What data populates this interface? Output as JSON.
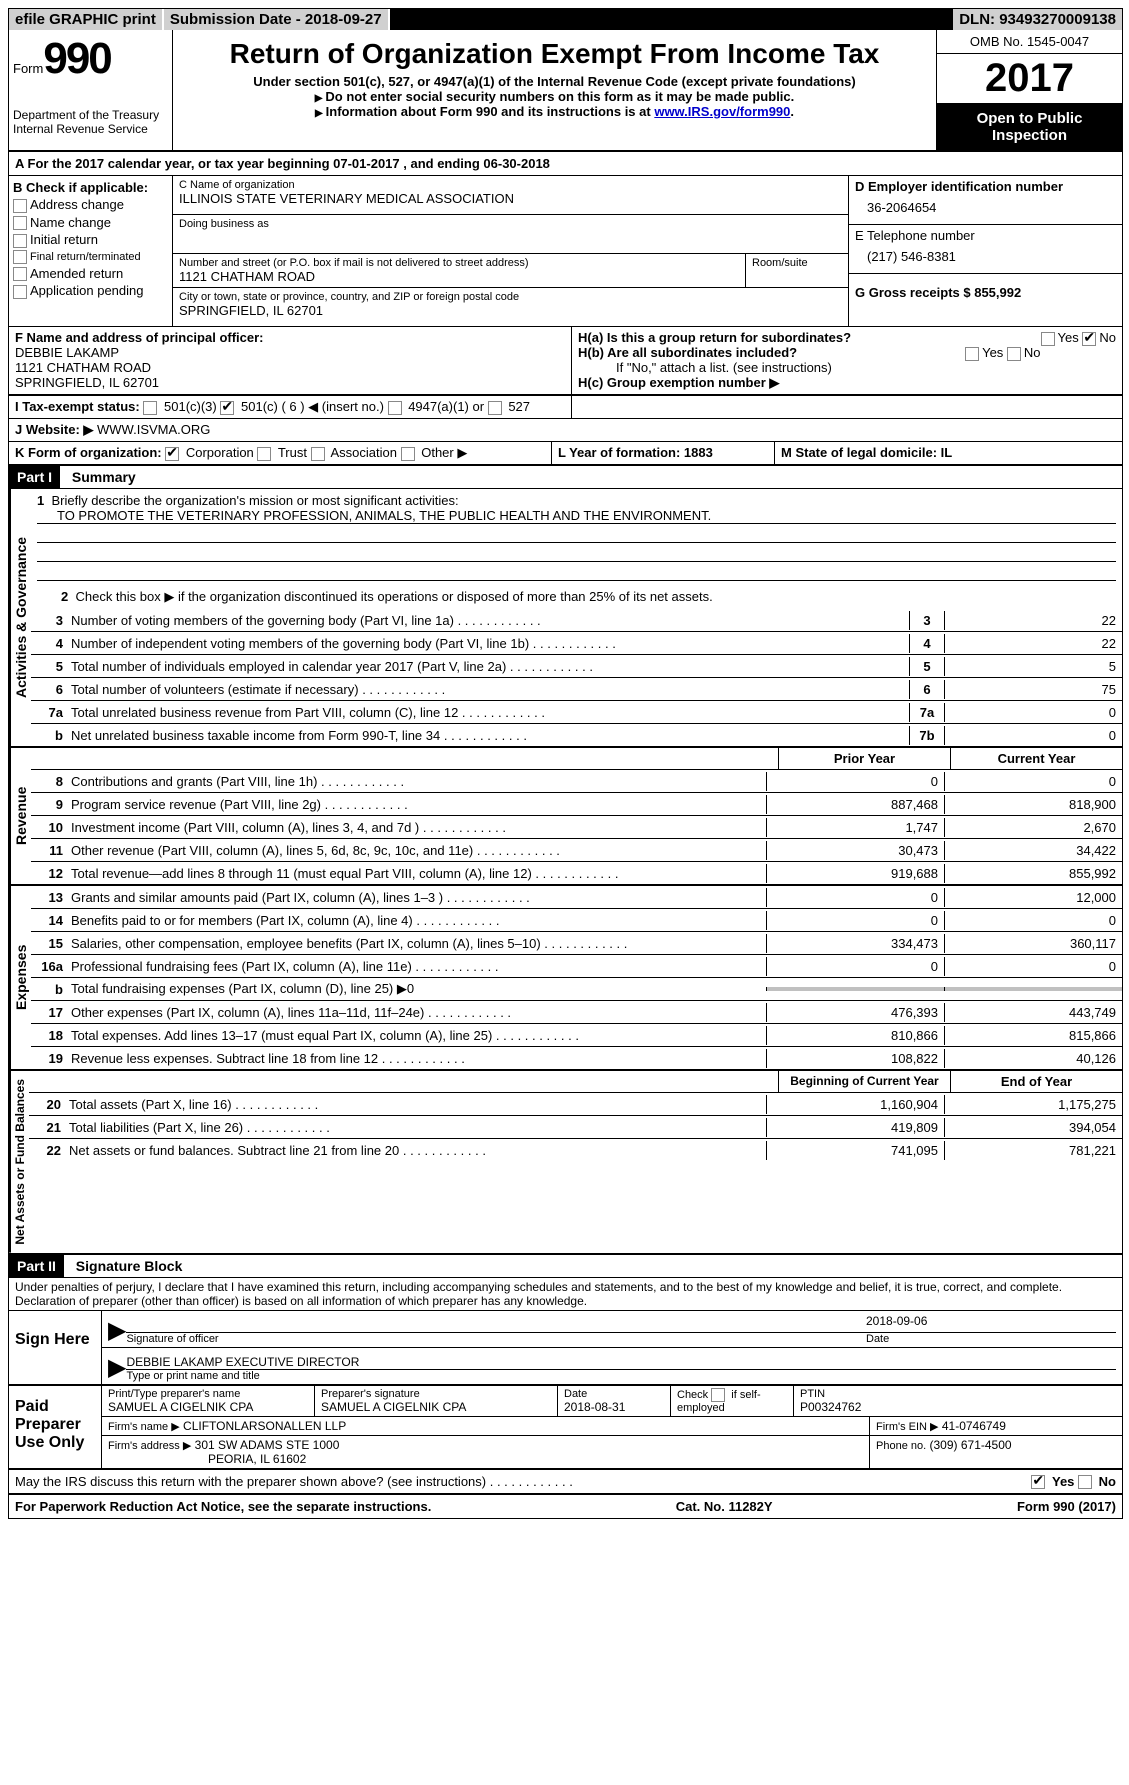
{
  "topbar": {
    "efile": "efile GRAPHIC print",
    "submission": "Submission Date - 2018-09-27",
    "dln": "DLN: 93493270009138"
  },
  "header": {
    "form_label": "Form",
    "form_num": "990",
    "dept": "Department of the Treasury",
    "irs": "Internal Revenue Service",
    "title": "Return of Organization Exempt From Income Tax",
    "subtitle": "Under section 501(c), 527, or 4947(a)(1) of the Internal Revenue Code (except private foundations)",
    "note1": "Do not enter social security numbers on this form as it may be made public.",
    "note2_prefix": "Information about Form 990 and its instructions is at ",
    "note2_link": "www.IRS.gov/form990",
    "omb": "OMB No. 1545-0047",
    "year": "2017",
    "inspection": "Open to Public Inspection"
  },
  "section_a": "A  For the 2017 calendar year, or tax year beginning 07-01-2017   , and ending 06-30-2018",
  "section_b": {
    "header": "B Check if applicable:",
    "items": [
      "Address change",
      "Name change",
      "Initial return",
      "Final return/terminated",
      "Amended return",
      "Application pending"
    ]
  },
  "section_c": {
    "name_label": "C Name of organization",
    "name": "ILLINOIS STATE VETERINARY MEDICAL ASSOCIATION",
    "dba_label": "Doing business as",
    "street_label": "Number and street (or P.O. box if mail is not delivered to street address)",
    "room_label": "Room/suite",
    "street": "1121 CHATHAM ROAD",
    "city_label": "City or town, state or province, country, and ZIP or foreign postal code",
    "city": "SPRINGFIELD, IL  62701"
  },
  "section_d": {
    "ein_label": "D Employer identification number",
    "ein": "36-2064654",
    "phone_label": "E Telephone number",
    "phone": "(217) 546-8381",
    "gross_label": "G Gross receipts $ 855,992"
  },
  "section_f": {
    "label": "F  Name and address of principal officer:",
    "name": "DEBBIE LAKAMP",
    "addr1": "1121 CHATHAM ROAD",
    "addr2": "SPRINGFIELD, IL  62701"
  },
  "section_h": {
    "ha": "H(a)  Is this a group return for subordinates?",
    "hb": "H(b)  Are all subordinates included?",
    "hb_note": "If \"No,\" attach a list. (see instructions)",
    "hc": "H(c)  Group exemption number ▶"
  },
  "section_i": {
    "label": "I  Tax-exempt status:",
    "opts": [
      "501(c)(3)",
      "501(c) ( 6 ) ◀ (insert no.)",
      "4947(a)(1) or",
      "527"
    ]
  },
  "section_j": {
    "label": "J  Website: ▶",
    "value": "WWW.ISVMA.ORG"
  },
  "section_k": {
    "label": "K Form of organization:",
    "opts": [
      "Corporation",
      "Trust",
      "Association",
      "Other ▶"
    ]
  },
  "section_l": "L Year of formation: 1883",
  "section_m": "M State of legal domicile: IL",
  "part1": {
    "header": "Part I",
    "title": "Summary",
    "line1_label": "Briefly describe the organization's mission or most significant activities:",
    "line1_text": "TO PROMOTE THE VETERINARY PROFESSION, ANIMALS, THE PUBLIC HEALTH AND THE ENVIRONMENT.",
    "line2": "Check this box ▶      if the organization discontinued its operations or disposed of more than 25% of its net assets.",
    "governance_label": "Activities & Governance",
    "revenue_label": "Revenue",
    "expenses_label": "Expenses",
    "netassets_label": "Net Assets or Fund Balances",
    "gov_rows": [
      {
        "num": "3",
        "text": "Number of voting members of the governing body (Part VI, line 1a)",
        "box": "3",
        "val": "22"
      },
      {
        "num": "4",
        "text": "Number of independent voting members of the governing body (Part VI, line 1b)",
        "box": "4",
        "val": "22"
      },
      {
        "num": "5",
        "text": "Total number of individuals employed in calendar year 2017 (Part V, line 2a)",
        "box": "5",
        "val": "5"
      },
      {
        "num": "6",
        "text": "Total number of volunteers (estimate if necessary)",
        "box": "6",
        "val": "75"
      },
      {
        "num": "7a",
        "text": "Total unrelated business revenue from Part VIII, column (C), line 12",
        "box": "7a",
        "val": "0"
      },
      {
        "num": "b",
        "text": "Net unrelated business taxable income from Form 990-T, line 34",
        "box": "7b",
        "val": "0"
      }
    ],
    "col_headers": {
      "prior": "Prior Year",
      "current": "Current Year",
      "begin": "Beginning of Current Year",
      "end": "End of Year"
    },
    "rev_rows": [
      {
        "num": "8",
        "text": "Contributions and grants (Part VIII, line 1h)",
        "prior": "0",
        "current": "0"
      },
      {
        "num": "9",
        "text": "Program service revenue (Part VIII, line 2g)",
        "prior": "887,468",
        "current": "818,900"
      },
      {
        "num": "10",
        "text": "Investment income (Part VIII, column (A), lines 3, 4, and 7d )",
        "prior": "1,747",
        "current": "2,670"
      },
      {
        "num": "11",
        "text": "Other revenue (Part VIII, column (A), lines 5, 6d, 8c, 9c, 10c, and 11e)",
        "prior": "30,473",
        "current": "34,422"
      },
      {
        "num": "12",
        "text": "Total revenue—add lines 8 through 11 (must equal Part VIII, column (A), line 12)",
        "prior": "919,688",
        "current": "855,992"
      }
    ],
    "exp_rows": [
      {
        "num": "13",
        "text": "Grants and similar amounts paid (Part IX, column (A), lines 1–3 )",
        "prior": "0",
        "current": "12,000"
      },
      {
        "num": "14",
        "text": "Benefits paid to or for members (Part IX, column (A), line 4)",
        "prior": "0",
        "current": "0"
      },
      {
        "num": "15",
        "text": "Salaries, other compensation, employee benefits (Part IX, column (A), lines 5–10)",
        "prior": "334,473",
        "current": "360,117"
      },
      {
        "num": "16a",
        "text": "Professional fundraising fees (Part IX, column (A), line 11e)",
        "prior": "0",
        "current": "0"
      },
      {
        "num": "b",
        "text": "Total fundraising expenses (Part IX, column (D), line 25) ▶0",
        "prior": "",
        "current": "",
        "shaded": true
      },
      {
        "num": "17",
        "text": "Other expenses (Part IX, column (A), lines 11a–11d, 11f–24e)",
        "prior": "476,393",
        "current": "443,749"
      },
      {
        "num": "18",
        "text": "Total expenses. Add lines 13–17 (must equal Part IX, column (A), line 25)",
        "prior": "810,866",
        "current": "815,866"
      },
      {
        "num": "19",
        "text": "Revenue less expenses. Subtract line 18 from line 12",
        "prior": "108,822",
        "current": "40,126"
      }
    ],
    "net_rows": [
      {
        "num": "20",
        "text": "Total assets (Part X, line 16)",
        "prior": "1,160,904",
        "current": "1,175,275"
      },
      {
        "num": "21",
        "text": "Total liabilities (Part X, line 26)",
        "prior": "419,809",
        "current": "394,054"
      },
      {
        "num": "22",
        "text": "Net assets or fund balances. Subtract line 21 from line 20",
        "prior": "741,095",
        "current": "781,221"
      }
    ]
  },
  "part2": {
    "header": "Part II",
    "title": "Signature Block",
    "perjury": "Under penalties of perjury, I declare that I have examined this return, including accompanying schedules and statements, and to the best of my knowledge and belief, it is true, correct, and complete. Declaration of preparer (other than officer) is based on all information of which preparer has any knowledge.",
    "sign_here": "Sign Here",
    "sig_date": "2018-09-06",
    "sig_officer_label": "Signature of officer",
    "date_label": "Date",
    "officer_name": "DEBBIE LAKAMP EXECUTIVE DIRECTOR",
    "officer_name_label": "Type or print name and title",
    "paid": "Paid Preparer Use Only",
    "prep_name_label": "Print/Type preparer's name",
    "prep_name": "SAMUEL A CIGELNIK CPA",
    "prep_sig_label": "Preparer's signature",
    "prep_sig": "SAMUEL A CIGELNIK CPA",
    "prep_date_label": "Date",
    "prep_date": "2018-08-31",
    "check_self": "Check       if self-employed",
    "ptin_label": "PTIN",
    "ptin": "P00324762",
    "firm_name_label": "Firm's name    ▶",
    "firm_name": "CLIFTONLARSONALLEN LLP",
    "firm_ein_label": "Firm's EIN ▶",
    "firm_ein": "41-0746749",
    "firm_addr_label": "Firm's address ▶",
    "firm_addr": "301 SW ADAMS STE 1000",
    "firm_city": "PEORIA, IL  61602",
    "firm_phone_label": "Phone no.",
    "firm_phone": "(309) 671-4500",
    "discuss": "May the IRS discuss this return with the preparer shown above? (see instructions)"
  },
  "footer": {
    "paperwork": "For Paperwork Reduction Act Notice, see the separate instructions.",
    "cat": "Cat. No. 11282Y",
    "form": "Form 990 (2017)"
  }
}
